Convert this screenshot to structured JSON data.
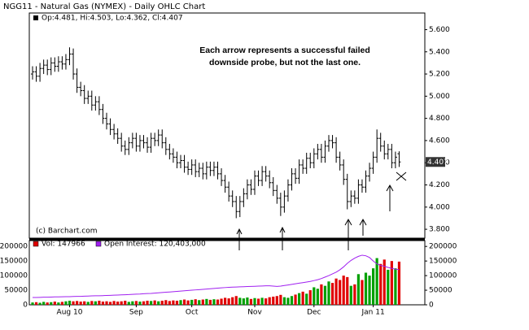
{
  "chart_data": {
    "type": "ohlc",
    "title": "NGG11 - Natural Gas (NYMEX) - Daily OHLC Chart",
    "legend_text": "Op:4.481, Hi:4.503, Lo:4.362, Cl:4.407",
    "annotation": [
      "Each arrow represents a successful failed",
      "downside probe, but not the last one."
    ],
    "source": "(c) Barchart.com",
    "color": "#000000",
    "categories": [
      null,
      null,
      null,
      null,
      null,
      null,
      null,
      null,
      null,
      null,
      "Aug 10",
      null,
      null,
      null,
      null,
      null,
      null,
      null,
      null,
      null,
      null,
      null,
      null,
      null,
      null,
      null,
      null,
      null,
      "Sep",
      null,
      null,
      null,
      null,
      null,
      null,
      null,
      null,
      null,
      null,
      null,
      null,
      null,
      null,
      "Oct",
      null,
      null,
      null,
      null,
      null,
      null,
      null,
      null,
      null,
      null,
      null,
      null,
      null,
      null,
      null,
      null,
      "Nov",
      null,
      null,
      null,
      null,
      null,
      null,
      null,
      null,
      null,
      null,
      null,
      null,
      null,
      null,
      null,
      "Dec",
      null,
      null,
      null,
      null,
      null,
      null,
      null,
      null,
      null,
      null,
      null,
      null,
      null,
      null,
      null,
      "Jan 11",
      null,
      null,
      null,
      null,
      null,
      null,
      null
    ],
    "open": [
      5.2,
      5.22,
      5.18,
      5.25,
      5.28,
      5.24,
      5.3,
      5.27,
      5.31,
      5.29,
      5.33,
      5.38,
      5.2,
      5.08,
      5.05,
      4.98,
      5.0,
      4.92,
      4.95,
      4.88,
      4.8,
      4.75,
      4.7,
      4.66,
      4.62,
      4.55,
      4.52,
      4.58,
      4.62,
      4.55,
      4.6,
      4.58,
      4.54,
      4.62,
      4.6,
      4.65,
      4.58,
      4.52,
      4.48,
      4.45,
      4.4,
      4.42,
      4.36,
      4.34,
      4.38,
      4.32,
      4.35,
      4.3,
      4.36,
      4.33,
      4.36,
      4.3,
      4.24,
      4.18,
      4.1,
      4.05,
      3.96,
      4.05,
      4.12,
      4.2,
      4.16,
      4.28,
      4.24,
      4.32,
      4.28,
      4.22,
      4.15,
      4.08,
      4.0,
      4.1,
      4.2,
      4.3,
      4.26,
      4.38,
      4.35,
      4.44,
      4.4,
      4.48,
      4.52,
      4.45,
      4.55,
      4.6,
      4.58,
      4.45,
      4.38,
      4.25,
      4.05,
      4.1,
      4.08,
      4.2,
      4.18,
      4.28,
      4.35,
      4.45,
      4.62,
      4.55,
      4.48,
      4.52,
      4.4,
      4.481
    ],
    "high": [
      5.27,
      5.27,
      5.3,
      5.33,
      5.33,
      5.35,
      5.35,
      5.36,
      5.36,
      5.38,
      5.44,
      5.43,
      5.25,
      5.13,
      5.1,
      5.05,
      5.05,
      5.0,
      5.0,
      4.93,
      4.85,
      4.8,
      4.75,
      4.71,
      4.67,
      4.6,
      4.63,
      4.67,
      4.67,
      4.65,
      4.65,
      4.63,
      4.67,
      4.67,
      4.7,
      4.7,
      4.63,
      4.57,
      4.53,
      4.5,
      4.47,
      4.47,
      4.41,
      4.43,
      4.43,
      4.4,
      4.4,
      4.41,
      4.41,
      4.41,
      4.41,
      4.35,
      4.29,
      4.23,
      4.15,
      4.1,
      4.1,
      4.17,
      4.25,
      4.25,
      4.33,
      4.33,
      4.37,
      4.37,
      4.33,
      4.27,
      4.2,
      4.13,
      4.15,
      4.25,
      4.35,
      4.35,
      4.43,
      4.43,
      4.49,
      4.49,
      4.53,
      4.57,
      4.57,
      4.6,
      4.65,
      4.65,
      4.63,
      4.5,
      4.43,
      4.3,
      4.15,
      4.15,
      4.25,
      4.25,
      4.33,
      4.4,
      4.5,
      4.7,
      4.67,
      4.6,
      4.57,
      4.57,
      4.5,
      4.503
    ],
    "low": [
      5.15,
      5.13,
      5.13,
      5.2,
      5.19,
      5.19,
      5.22,
      5.22,
      5.24,
      5.24,
      5.28,
      5.15,
      5.03,
      5.0,
      4.93,
      4.93,
      4.87,
      4.87,
      4.83,
      4.75,
      4.7,
      4.65,
      4.61,
      4.57,
      4.5,
      4.47,
      4.47,
      4.53,
      4.5,
      4.5,
      4.53,
      4.49,
      4.49,
      4.55,
      4.55,
      4.53,
      4.47,
      4.43,
      4.4,
      4.35,
      4.35,
      4.31,
      4.29,
      4.29,
      4.27,
      4.27,
      4.25,
      4.25,
      4.28,
      4.28,
      4.25,
      4.19,
      4.13,
      4.05,
      4.0,
      3.9,
      3.91,
      4.0,
      4.07,
      4.11,
      4.11,
      4.19,
      4.19,
      4.23,
      4.17,
      4.1,
      4.03,
      3.92,
      3.95,
      4.05,
      4.15,
      4.21,
      4.21,
      4.3,
      4.3,
      4.35,
      4.35,
      4.43,
      4.4,
      4.4,
      4.5,
      4.53,
      4.4,
      4.33,
      4.2,
      3.98,
      4.0,
      4.03,
      4.03,
      4.13,
      4.13,
      4.23,
      4.3,
      4.4,
      4.5,
      4.43,
      4.43,
      4.35,
      4.35,
      4.362
    ],
    "close": [
      5.22,
      5.18,
      5.25,
      5.28,
      5.24,
      5.3,
      5.27,
      5.31,
      5.29,
      5.33,
      5.38,
      5.2,
      5.08,
      5.05,
      4.98,
      5.0,
      4.92,
      4.95,
      4.88,
      4.8,
      4.75,
      4.7,
      4.66,
      4.62,
      4.55,
      4.52,
      4.58,
      4.62,
      4.55,
      4.6,
      4.58,
      4.54,
      4.62,
      4.6,
      4.65,
      4.58,
      4.52,
      4.48,
      4.45,
      4.4,
      4.42,
      4.36,
      4.34,
      4.38,
      4.32,
      4.35,
      4.3,
      4.36,
      4.33,
      4.36,
      4.3,
      4.24,
      4.18,
      4.1,
      4.05,
      3.96,
      4.05,
      4.12,
      4.2,
      4.16,
      4.28,
      4.24,
      4.32,
      4.28,
      4.22,
      4.15,
      4.08,
      4.0,
      4.1,
      4.2,
      4.3,
      4.26,
      4.38,
      4.35,
      4.44,
      4.4,
      4.48,
      4.52,
      4.45,
      4.55,
      4.6,
      4.58,
      4.45,
      4.38,
      4.25,
      4.05,
      4.1,
      4.08,
      4.2,
      4.18,
      4.28,
      4.35,
      4.45,
      4.62,
      4.55,
      4.48,
      4.52,
      4.4,
      4.45,
      4.407
    ],
    "ylim": [
      3.72,
      5.75
    ],
    "yticks": [
      {
        "value": 3.8,
        "label": "3.800"
      },
      {
        "value": 4.0,
        "label": "4.000"
      },
      {
        "value": 4.2,
        "label": "4.200"
      },
      {
        "value": 4.4,
        "label": "4.400"
      },
      {
        "value": 4.6,
        "label": "4.600"
      },
      {
        "value": 4.8,
        "label": "4.800"
      },
      {
        "value": 5.0,
        "label": "5.000"
      },
      {
        "value": 5.2,
        "label": "5.200"
      },
      {
        "value": 5.4,
        "label": "5.400"
      },
      {
        "value": 5.6,
        "label": "5.600"
      }
    ],
    "volume": {
      "label": "Vol: 147966",
      "up_color": "#00a000",
      "down_color": "#e00000",
      "values": [
        8000,
        9000,
        7000,
        10000,
        8000,
        9000,
        11000,
        8000,
        10000,
        12000,
        14000,
        12000,
        13000,
        11000,
        12000,
        10000,
        13000,
        12000,
        14000,
        11000,
        12000,
        10000,
        13000,
        11000,
        12000,
        14000,
        10000,
        12000,
        13000,
        11000,
        12000,
        14000,
        13000,
        15000,
        12000,
        14000,
        16000,
        13000,
        15000,
        14000,
        16000,
        18000,
        15000,
        17000,
        19000,
        16000,
        18000,
        20000,
        17000,
        19000,
        18000,
        21000,
        24000,
        22000,
        26000,
        30000,
        24000,
        22000,
        25000,
        20000,
        23000,
        21000,
        24000,
        22000,
        26000,
        28000,
        30000,
        34000,
        26000,
        24000,
        30000,
        35000,
        40000,
        45000,
        38000,
        50000,
        60000,
        55000,
        70000,
        65000,
        80000,
        75000,
        90000,
        85000,
        100000,
        95000,
        65000,
        70000,
        105000,
        85000,
        110000,
        100000,
        125000,
        160000,
        140000,
        155000,
        120000,
        150000,
        125000,
        147966
      ],
      "ylim": [
        0,
        220000
      ],
      "yticks": [
        0,
        50000,
        100000,
        150000,
        200000
      ]
    },
    "open_interest": {
      "label": "Open Interest: 120,403,000",
      "color": "#a020f0",
      "values": [
        25000,
        25000,
        25500,
        26000,
        26000,
        26500,
        27000,
        27000,
        27500,
        28000,
        28000,
        28500,
        29000,
        29000,
        29500,
        30000,
        30500,
        31000,
        31000,
        31500,
        32000,
        32500,
        33000,
        33500,
        34000,
        34500,
        35000,
        36000,
        36500,
        37000,
        38000,
        38500,
        39000,
        40000,
        41000,
        42000,
        43000,
        44000,
        45000,
        46000,
        47000,
        48000,
        49000,
        50000,
        51000,
        52000,
        53000,
        54000,
        55000,
        56000,
        57000,
        58000,
        59000,
        60000,
        60500,
        61000,
        61500,
        62000,
        62500,
        63000,
        63500,
        64000,
        64500,
        65000,
        65000,
        64000,
        63000,
        64000,
        66000,
        68000,
        70000,
        72000,
        74000,
        76000,
        78000,
        80000,
        83000,
        86000,
        90000,
        95000,
        100000,
        106000,
        112000,
        120000,
        130000,
        142000,
        152000,
        160000,
        166000,
        170000,
        168000,
        162000,
        150000,
        140000,
        135000,
        132000,
        128000,
        125000,
        122000,
        120403
      ]
    }
  }
}
